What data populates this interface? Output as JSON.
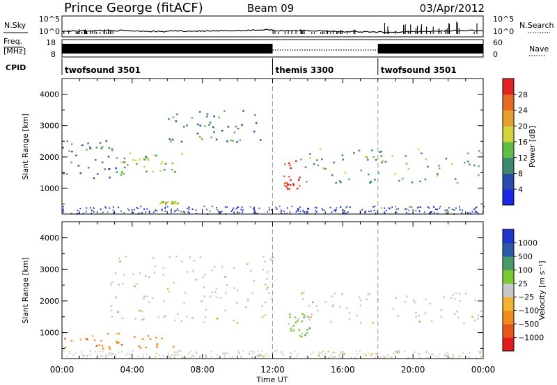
{
  "header": {
    "station": "Prince George (fitACF)",
    "beam": "Beam 09",
    "date": "03/Apr/2012"
  },
  "sky_panel": {
    "left_label": "N.Sky",
    "right_label": "N.Search",
    "left_ticks": [
      "10^5",
      "10^0"
    ],
    "right_ticks": [
      "10^5",
      "10^0"
    ]
  },
  "freq_panel": {
    "left_label_1": "Freq.",
    "left_label_2": "[MHz]",
    "right_label": "Nave",
    "left_ticks": [
      "18",
      "8"
    ],
    "right_ticks": [
      "60",
      "0"
    ]
  },
  "cpid": {
    "label": "CPID",
    "segments": [
      {
        "name": "twofsound 3501",
        "start_hour": 0,
        "end_hour": 12
      },
      {
        "name": "themis 3300",
        "start_hour": 12,
        "end_hour": 18
      },
      {
        "name": "twofsound 3501",
        "start_hour": 18,
        "end_hour": 24
      }
    ]
  },
  "x_axis": {
    "title": "Time UT",
    "ticks": [
      "00:00",
      "04:00",
      "08:00",
      "12:00",
      "16:00",
      "20:00",
      "00:00"
    ],
    "range_hours": [
      0,
      24
    ]
  },
  "panels": [
    {
      "ylabel": "Slant Range [km]",
      "yticks": [
        "1000",
        "2000",
        "3000",
        "4000"
      ],
      "cbar_label": "Power [dB]",
      "cbar_ticks": [
        "4",
        "8",
        "12",
        "16",
        "20",
        "24",
        "28"
      ]
    },
    {
      "ylabel": "Slant Range [km]",
      "yticks": [
        "1000",
        "2000",
        "3000",
        "4000"
      ],
      "cbar_label": "Velocity [m s⁻¹]",
      "cbar_ticks": [
        "1000",
        "500",
        "100",
        "25",
        "−25",
        "−100",
        "−500",
        "−1000"
      ]
    }
  ],
  "chart_data": [
    {
      "type": "heatmap",
      "title": "Power",
      "x_units": "hours UT",
      "y_units": "km",
      "xlim": [
        0,
        24
      ],
      "ylim": [
        180,
        4500
      ],
      "clim": [
        0,
        32
      ],
      "colors": [
        "#1c28e6",
        "#2a4ea8",
        "#3c8870",
        "#62bc48",
        "#d2d23a",
        "#e6a030",
        "#e66a24",
        "#e02424"
      ],
      "features": [
        {
          "region": "early slanted band",
          "x": [
            0,
            3.5
          ],
          "y": [
            1200,
            2600
          ],
          "value": 10
        },
        {
          "region": "morning band",
          "x": [
            3.2,
            6.8
          ],
          "y": [
            1500,
            2200
          ],
          "value": 14
        },
        {
          "region": "arc",
          "x": [
            6,
            11.5
          ],
          "y": [
            2500,
            3500
          ],
          "value": 10
        },
        {
          "region": "patch",
          "x": [
            5.5,
            6.6
          ],
          "y": [
            500,
            600
          ],
          "value": 18
        },
        {
          "region": "strong echo",
          "x": [
            12.6,
            13.5
          ],
          "y": [
            1000,
            1900
          ],
          "value": 28
        },
        {
          "region": "afternoon band",
          "x": [
            13.5,
            24
          ],
          "y": [
            1200,
            2300
          ],
          "value": 14
        }
      ]
    },
    {
      "type": "heatmap",
      "title": "Velocity",
      "x_units": "hours UT",
      "y_units": "km",
      "xlim": [
        0,
        24
      ],
      "ylim": [
        180,
        4500
      ],
      "clim": [
        -1000,
        1000
      ],
      "colors": [
        "#e01c1c",
        "#e6561c",
        "#f08c1c",
        "#f0b430",
        "#c8c8c8",
        "#7ac832",
        "#4a9a6a",
        "#2c5aa8",
        "#2036c8"
      ],
      "features": [
        {
          "region": "low-range echoes",
          "x": [
            0,
            6.6
          ],
          "y": [
            500,
            1000
          ],
          "value": -300
        },
        {
          "region": "grey arc",
          "x": [
            2.5,
            12
          ],
          "y": [
            1300,
            3500
          ],
          "value": 0
        },
        {
          "region": "green patch",
          "x": [
            12.8,
            14.1
          ],
          "y": [
            900,
            1700
          ],
          "value": 100
        },
        {
          "region": "grey band",
          "x": [
            13.5,
            24
          ],
          "y": [
            1300,
            2300
          ],
          "value": 0
        }
      ]
    }
  ]
}
